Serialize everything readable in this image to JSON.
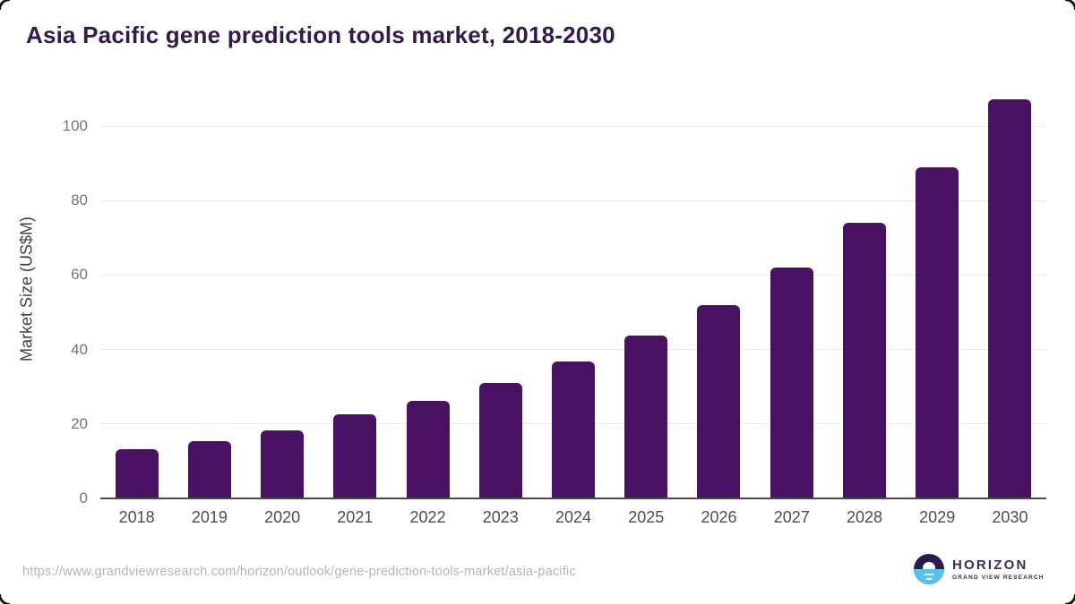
{
  "title": "Asia Pacific gene prediction tools market, 2018-2030",
  "source_url": "https://www.grandviewresearch.com/horizon/outlook/gene-prediction-tools-market/asia-pacific",
  "logo": {
    "name": "HORIZON",
    "subtitle": "GRAND VIEW RESEARCH"
  },
  "colors": {
    "bar": "#481161",
    "title": "#321a4d",
    "grid": "#e9e9e9",
    "axis": "#4a4a4a",
    "logo_purple": "#2a1a4d",
    "logo_blue": "#55c3f0"
  },
  "chart_data": {
    "type": "bar",
    "title": "Asia Pacific gene prediction tools market, 2018-2030",
    "categories": [
      "2018",
      "2019",
      "2020",
      "2021",
      "2022",
      "2023",
      "2024",
      "2025",
      "2026",
      "2027",
      "2028",
      "2029",
      "2030"
    ],
    "values": [
      13.2,
      15.3,
      18.3,
      22.6,
      26.3,
      31.0,
      36.8,
      43.7,
      52.0,
      62.0,
      74.1,
      88.9,
      107.1
    ],
    "xlabel": "",
    "ylabel": "Market Size (US$M)",
    "ylim": [
      0,
      100
    ],
    "yticks": [
      0,
      20,
      40,
      60,
      80,
      100
    ],
    "grid": "horizontal",
    "legend": "none",
    "bar_color": "#481161"
  }
}
